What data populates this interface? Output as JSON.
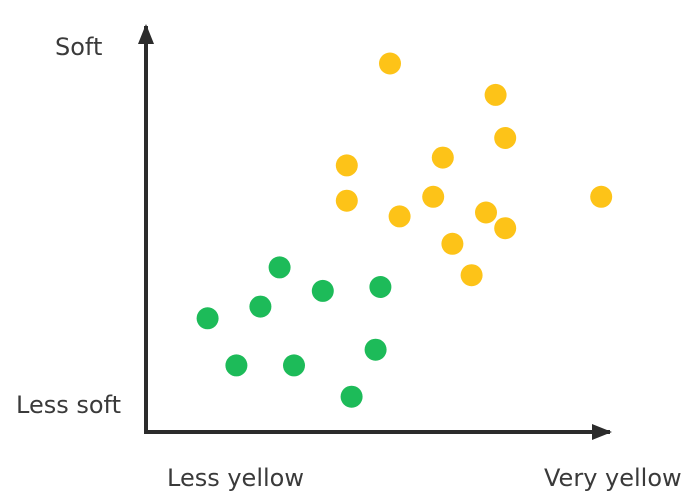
{
  "chart_data": {
    "type": "scatter",
    "title": "",
    "xlabel": "",
    "ylabel": "",
    "xlim": [
      0,
      100
    ],
    "ylim": [
      0,
      100
    ],
    "grid": false,
    "x_tick_labels": {
      "low": "Less yellow",
      "high": "Very yellow"
    },
    "y_tick_labels": {
      "low": "Less soft",
      "high": "Soft"
    },
    "series": [
      {
        "color": "#1dbb59",
        "points": [
          [
            12,
            29
          ],
          [
            23,
            32
          ],
          [
            27,
            42
          ],
          [
            36,
            36
          ],
          [
            48,
            37
          ],
          [
            18,
            17
          ],
          [
            30,
            17
          ],
          [
            47,
            21
          ],
          [
            42,
            9
          ]
        ]
      },
      {
        "color": "#fdc318",
        "points": [
          [
            50,
            94
          ],
          [
            72,
            86
          ],
          [
            74,
            75
          ],
          [
            41,
            68
          ],
          [
            61,
            70
          ],
          [
            41,
            59
          ],
          [
            59,
            60
          ],
          [
            52,
            55
          ],
          [
            70,
            56
          ],
          [
            74,
            52
          ],
          [
            63,
            48
          ],
          [
            94,
            60
          ],
          [
            67,
            40
          ]
        ]
      }
    ]
  }
}
